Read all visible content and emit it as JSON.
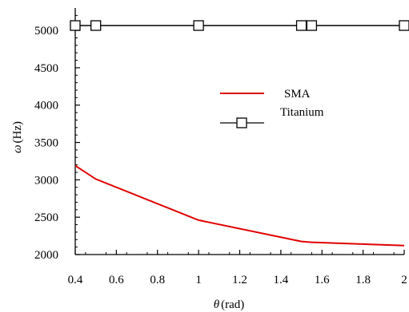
{
  "chart_data": {
    "type": "line",
    "xlabel_symbol": "θ",
    "xlabel_unit": "(rad)",
    "ylabel_symbol": "ω",
    "ylabel_unit": "(Hz)",
    "xlim": [
      0.4,
      2.0
    ],
    "ylim": [
      2000,
      5300
    ],
    "xticks": [
      0.4,
      0.6,
      0.8,
      1.0,
      1.2,
      1.4,
      1.6,
      1.8,
      2.0
    ],
    "xtick_labels": [
      "0.4",
      "0.6",
      "0.8",
      "1",
      "1.2",
      "1.4",
      "1.6",
      "1.8",
      "2"
    ],
    "yticks": [
      2000,
      2500,
      3000,
      3500,
      4000,
      4500,
      5000
    ],
    "ytick_labels": [
      "2000",
      "2500",
      "3000",
      "3500",
      "4000",
      "4500",
      "5000"
    ],
    "grid": false,
    "legend_position": "center-right",
    "series": [
      {
        "name": "SMA",
        "color": "#e00000",
        "marker": "none",
        "x": [
          0.4,
          0.5,
          1.0,
          1.5,
          1.55,
          2.0
        ],
        "y": [
          3190,
          3010,
          2460,
          2175,
          2165,
          2120
        ]
      },
      {
        "name": "Titanium",
        "color": "#000000",
        "marker": "square",
        "x": [
          0.4,
          0.5,
          1.0,
          1.5,
          1.55,
          2.0
        ],
        "y": [
          5065,
          5065,
          5065,
          5065,
          5065,
          5065
        ]
      }
    ]
  }
}
